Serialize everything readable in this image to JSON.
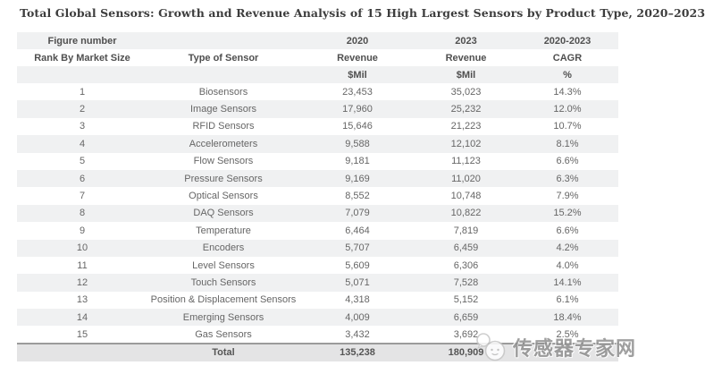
{
  "title": "Total Global Sensors: Growth and Revenue Analysis of 15 High Largest Sensors by Product Type, 2020–2023",
  "colors": {
    "row_alt_bg": "#f0f1f2",
    "total_row_bg": "#e4e4e5",
    "total_border": "#9b9b9b",
    "header_text": "#4f4f4f",
    "body_text": "#666666",
    "title_text": "#3d3d3d",
    "watermark_text": "#8f8f8f"
  },
  "table": {
    "header": {
      "row1": [
        "Figure number",
        "",
        "2020",
        "2023",
        "2020-2023"
      ],
      "row2": [
        "Rank By Market Size",
        "Type of Sensor",
        "Revenue",
        "Revenue",
        "CAGR"
      ],
      "row3": [
        "",
        "",
        "$Mil",
        "$Mil",
        "%"
      ]
    },
    "rows": [
      {
        "rank": "1",
        "type": "Biosensors",
        "rev2020": "23,453",
        "rev2023": "35,023",
        "cagr": "14.3%"
      },
      {
        "rank": "2",
        "type": "Image Sensors",
        "rev2020": "17,960",
        "rev2023": "25,232",
        "cagr": "12.0%"
      },
      {
        "rank": "3",
        "type": "RFID Sensors",
        "rev2020": "15,646",
        "rev2023": "21,223",
        "cagr": "10.7%"
      },
      {
        "rank": "4",
        "type": "Accelerometers",
        "rev2020": "9,588",
        "rev2023": "12,102",
        "cagr": "8.1%"
      },
      {
        "rank": "5",
        "type": "Flow Sensors",
        "rev2020": "9,181",
        "rev2023": "11,123",
        "cagr": "6.6%"
      },
      {
        "rank": "6",
        "type": "Pressure Sensors",
        "rev2020": "9,169",
        "rev2023": "11,020",
        "cagr": "6.3%"
      },
      {
        "rank": "7",
        "type": "Optical Sensors",
        "rev2020": "8,552",
        "rev2023": "10,748",
        "cagr": "7.9%"
      },
      {
        "rank": "8",
        "type": "DAQ Sensors",
        "rev2020": "7,079",
        "rev2023": "10,822",
        "cagr": "15.2%"
      },
      {
        "rank": "9",
        "type": "Temperature",
        "rev2020": "6,464",
        "rev2023": "7,819",
        "cagr": "6.6%"
      },
      {
        "rank": "10",
        "type": "Encoders",
        "rev2020": "5,707",
        "rev2023": "6,459",
        "cagr": "4.2%"
      },
      {
        "rank": "11",
        "type": "Level Sensors",
        "rev2020": "5,609",
        "rev2023": "6,306",
        "cagr": "4.0%"
      },
      {
        "rank": "12",
        "type": "Touch Sensors",
        "rev2020": "5,071",
        "rev2023": "7,528",
        "cagr": "14.1%"
      },
      {
        "rank": "13",
        "type": "Position & Displacement Sensors",
        "rev2020": "4,318",
        "rev2023": "5,152",
        "cagr": "6.1%"
      },
      {
        "rank": "14",
        "type": "Emerging Sensors",
        "rev2020": "4,009",
        "rev2023": "6,659",
        "cagr": "18.4%"
      },
      {
        "rank": "15",
        "type": "Gas Sensors",
        "rev2020": "3,432",
        "rev2023": "3,692",
        "cagr": "2.5%"
      }
    ],
    "total": {
      "rank": "",
      "label": "Total",
      "rev2020": "135,238",
      "rev2023": "180,909",
      "cagr": ""
    }
  },
  "watermark": {
    "text": "传感器专家网",
    "icon": "wechat-bubbles-icon"
  },
  "chart_data": {
    "type": "table",
    "title": "Total Global Sensors: Growth and Revenue Analysis of 15 High Largest Sensors by Product Type, 2020–2023",
    "columns": [
      "Rank By Market Size",
      "Type of Sensor",
      "2020 Revenue $Mil",
      "2023 Revenue $Mil",
      "2020-2023 CAGR %"
    ],
    "rows": [
      [
        1,
        "Biosensors",
        23453,
        35023,
        "14.3%"
      ],
      [
        2,
        "Image Sensors",
        17960,
        25232,
        "12.0%"
      ],
      [
        3,
        "RFID Sensors",
        15646,
        21223,
        "10.7%"
      ],
      [
        4,
        "Accelerometers",
        9588,
        12102,
        "8.1%"
      ],
      [
        5,
        "Flow Sensors",
        9181,
        11123,
        "6.6%"
      ],
      [
        6,
        "Pressure Sensors",
        9169,
        11020,
        "6.3%"
      ],
      [
        7,
        "Optical Sensors",
        8552,
        10748,
        "7.9%"
      ],
      [
        8,
        "DAQ Sensors",
        7079,
        10822,
        "15.2%"
      ],
      [
        9,
        "Temperature",
        6464,
        7819,
        "6.6%"
      ],
      [
        10,
        "Encoders",
        5707,
        6459,
        "4.2%"
      ],
      [
        11,
        "Level Sensors",
        5609,
        6306,
        "4.0%"
      ],
      [
        12,
        "Touch Sensors",
        5071,
        7528,
        "14.1%"
      ],
      [
        13,
        "Position & Displacement Sensors",
        4318,
        5152,
        "6.1%"
      ],
      [
        14,
        "Emerging Sensors",
        4009,
        6659,
        "18.4%"
      ],
      [
        15,
        "Gas Sensors",
        3432,
        3692,
        "2.5%"
      ]
    ],
    "total_row": [
      "",
      "Total",
      135238,
      180909,
      ""
    ]
  }
}
